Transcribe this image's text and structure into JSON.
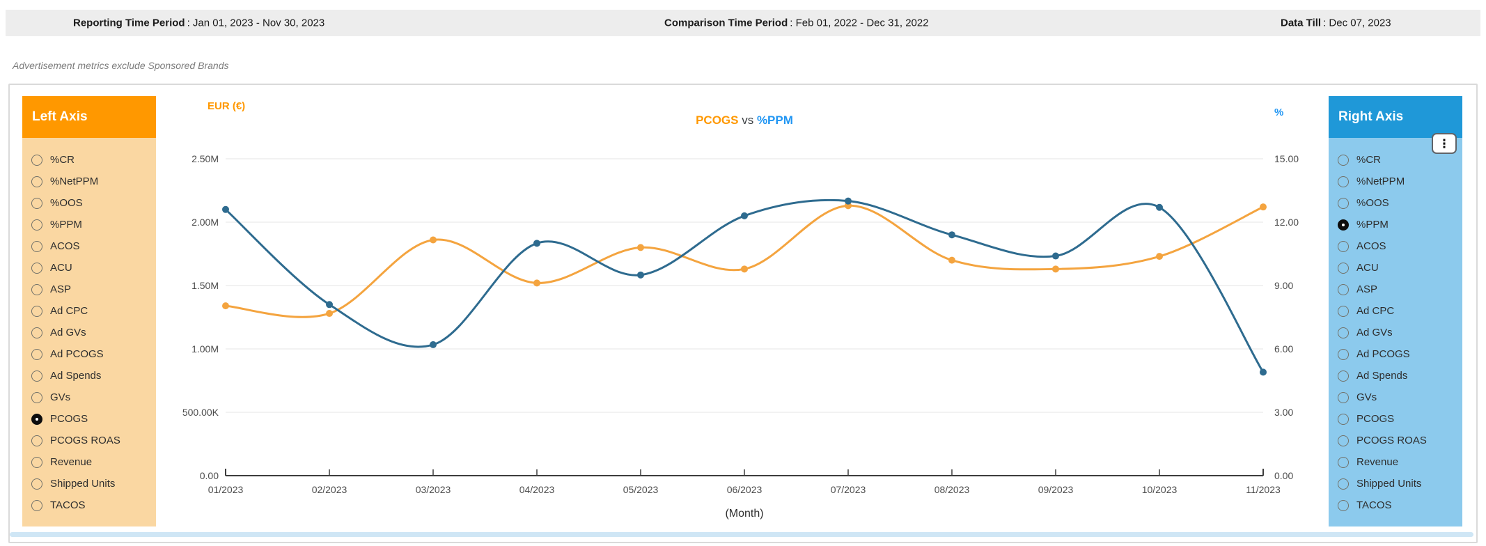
{
  "header": {
    "periods": [
      {
        "label": "Reporting Time Period",
        "value": ": Jan 01, 2023 - Nov 30, 2023"
      },
      {
        "label": "Comparison Time Period",
        "value": ": Feb 01, 2022 - Dec 31, 2022"
      },
      {
        "label": "Data Till",
        "value": ": Dec 07, 2023"
      }
    ]
  },
  "note": "Advertisement metrics exclude Sponsored Brands",
  "left_axis": {
    "title": "Left Axis",
    "selected": "PCOGS",
    "header_color": "#FF9800",
    "body_color": "#FAD7A2",
    "options": [
      "%CR",
      "%NetPPM",
      "%OOS",
      "%PPM",
      "ACOS",
      "ACU",
      "ASP",
      "Ad CPC",
      "Ad GVs",
      "Ad PCOGS",
      "Ad Spends",
      "GVs",
      "PCOGS",
      "PCOGS ROAS",
      "Revenue",
      "Shipped Units",
      "TACOS"
    ]
  },
  "right_axis": {
    "title": "Right Axis",
    "selected": "%PPM",
    "header_color": "#1F98D8",
    "body_color": "#8CCAED",
    "options": [
      "%CR",
      "%NetPPM",
      "%OOS",
      "%PPM",
      "ACOS",
      "ACU",
      "ASP",
      "Ad CPC",
      "Ad GVs",
      "Ad PCOGS",
      "Ad Spends",
      "GVs",
      "PCOGS",
      "PCOGS ROAS",
      "Revenue",
      "Shipped Units",
      "TACOS"
    ]
  },
  "menu_icon": "⋮",
  "chart_data": {
    "type": "line",
    "title": {
      "left": "PCOGS",
      "mid": "vs",
      "right": "%PPM",
      "left_color": "#FF9800",
      "right_color": "#2196F3"
    },
    "x": [
      "01/2023",
      "02/2023",
      "03/2023",
      "04/2023",
      "05/2023",
      "06/2023",
      "07/2023",
      "08/2023",
      "09/2023",
      "10/2023",
      "11/2023"
    ],
    "xlabel": "(Month)",
    "left_axis_label": "EUR (€)",
    "right_axis_label": "%",
    "left_ticks": [
      "0.00",
      "500.00K",
      "1.00M",
      "1.50M",
      "2.00M",
      "2.50M"
    ],
    "right_ticks": [
      "0.00",
      "3.00",
      "6.00",
      "9.00",
      "12.00",
      "15.00"
    ],
    "left_range": [
      0,
      2500000
    ],
    "right_range": [
      0,
      15
    ],
    "grid": true,
    "legend": false,
    "series": [
      {
        "name": "PCOGS",
        "axis": "left",
        "color": "#F4A43F",
        "values": [
          1340000,
          1280000,
          1860000,
          1520000,
          1800000,
          1630000,
          2130000,
          1700000,
          1630000,
          1730000,
          2120000
        ]
      },
      {
        "name": "%PPM",
        "axis": "right",
        "color": "#2E6B8F",
        "values": [
          12.6,
          8.1,
          6.2,
          11.0,
          9.5,
          12.3,
          13.0,
          11.4,
          10.4,
          12.7,
          4.9
        ]
      }
    ]
  }
}
